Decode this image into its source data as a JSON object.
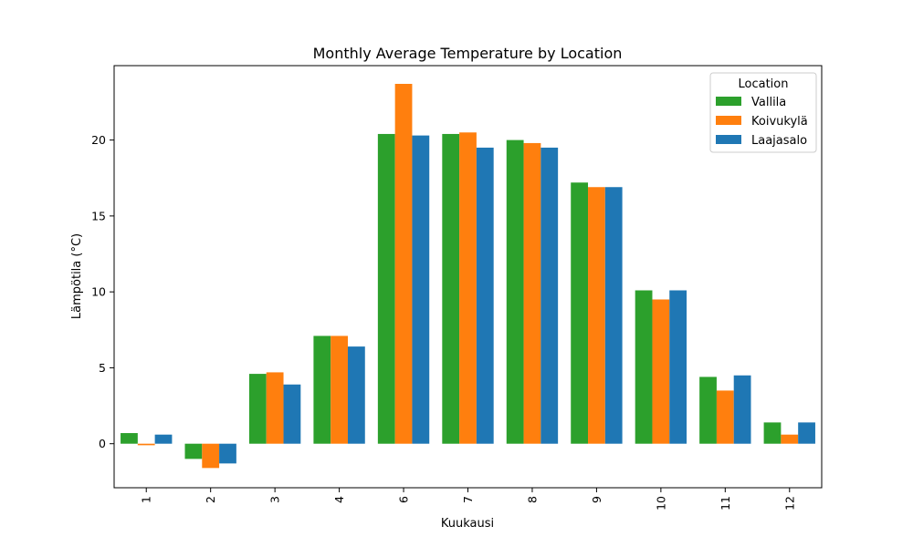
{
  "chart_data": {
    "type": "bar",
    "title": "Monthly Average Temperature by Location",
    "xlabel": "Kuukausi",
    "ylabel": "Lämpötila (°C)",
    "categories": [
      "1",
      "2",
      "3",
      "4",
      "6",
      "7",
      "8",
      "9",
      "10",
      "11",
      "12"
    ],
    "ylim": [
      -2.9,
      24.9
    ],
    "yticks": [
      0,
      5,
      10,
      15,
      20
    ],
    "legend": {
      "title": "Location",
      "position": "top-right"
    },
    "grid": false,
    "series": [
      {
        "name": "Vallila",
        "color": "#2ca02c",
        "values": [
          0.7,
          -1.0,
          4.6,
          7.1,
          20.4,
          20.4,
          20.0,
          17.2,
          10.1,
          4.4,
          1.4
        ]
      },
      {
        "name": "Koivukylä",
        "color": "#ff7f0e",
        "values": [
          -0.1,
          -1.6,
          4.7,
          7.1,
          23.7,
          20.5,
          19.8,
          16.9,
          9.5,
          3.5,
          0.6
        ]
      },
      {
        "name": "Laajasalo",
        "color": "#1f77b4",
        "values": [
          0.6,
          -1.3,
          3.9,
          6.4,
          20.3,
          19.5,
          19.5,
          16.9,
          10.1,
          4.5,
          1.4
        ]
      }
    ]
  }
}
